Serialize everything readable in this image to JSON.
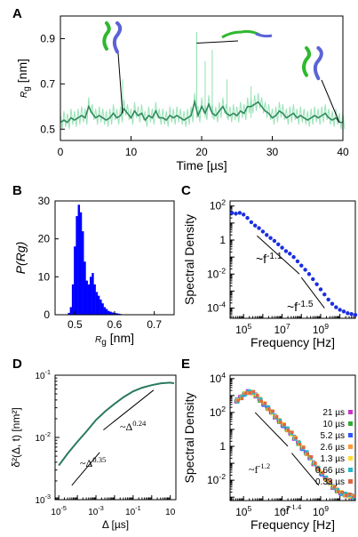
{
  "colors": {
    "rg_trace": "#2f8a5c",
    "rg_noise": "#8fe0b0",
    "histogram": "#0000ff",
    "spectral": "#1a2ee0",
    "msd": "#2a7a5c",
    "guide": "#000000"
  },
  "chart_data": [
    {
      "panel": "A",
      "type": "line",
      "xlabel": "Time [µs]",
      "ylabel_base": "R",
      "ylabel_sub": "g",
      "ylabel_unit": " [nm]",
      "xlim": [
        0,
        40
      ],
      "ylim": [
        0.45,
        1.0
      ],
      "xticks": [
        0,
        10,
        20,
        30,
        40
      ],
      "yticks": [
        0.5,
        0.7,
        0.9
      ],
      "x": [
        0,
        0.5,
        1,
        1.5,
        2,
        2.5,
        3,
        3.5,
        4,
        4.5,
        5,
        5.5,
        6,
        6.5,
        7,
        7.5,
        8,
        8.5,
        9,
        9.5,
        10,
        10.5,
        11,
        11.5,
        12,
        12.5,
        13,
        13.5,
        14,
        14.5,
        15,
        15.5,
        16,
        16.5,
        17,
        17.5,
        18,
        18.5,
        19,
        19.5,
        20,
        20.5,
        21,
        21.5,
        22,
        22.5,
        23,
        23.5,
        24,
        24.5,
        25,
        25.5,
        26,
        26.5,
        27,
        27.5,
        28,
        28.5,
        29,
        29.5,
        30,
        30.5,
        31,
        31.5,
        32,
        32.5,
        33,
        33.5,
        34,
        34.5,
        35,
        35.5,
        36,
        36.5,
        37,
        37.5,
        38,
        38.5,
        39,
        39.5,
        40
      ],
      "y": [
        0.53,
        0.54,
        0.53,
        0.55,
        0.54,
        0.55,
        0.56,
        0.55,
        0.6,
        0.57,
        0.55,
        0.56,
        0.55,
        0.54,
        0.55,
        0.57,
        0.55,
        0.56,
        0.59,
        0.57,
        0.55,
        0.58,
        0.56,
        0.57,
        0.54,
        0.56,
        0.55,
        0.58,
        0.55,
        0.55,
        0.54,
        0.56,
        0.55,
        0.56,
        0.55,
        0.54,
        0.55,
        0.56,
        0.62,
        0.56,
        0.6,
        0.57,
        0.61,
        0.57,
        0.56,
        0.58,
        0.6,
        0.57,
        0.56,
        0.57,
        0.56,
        0.58,
        0.57,
        0.6,
        0.6,
        0.61,
        0.62,
        0.6,
        0.58,
        0.57,
        0.55,
        0.56,
        0.58,
        0.57,
        0.55,
        0.56,
        0.57,
        0.55,
        0.56,
        0.55,
        0.54,
        0.55,
        0.56,
        0.55,
        0.56,
        0.57,
        0.55,
        0.54,
        0.55,
        0.53,
        0.53
      ]
    },
    {
      "panel": "B",
      "type": "bar",
      "xlabel_base": "R",
      "xlabel_sub": "g",
      "xlabel_unit": " [nm]",
      "ylabel": "P(Rg)",
      "xlim": [
        0.45,
        0.75
      ],
      "ylim": [
        0,
        30
      ],
      "xticks": [
        0.5,
        0.6,
        0.7
      ],
      "yticks": [
        0,
        10,
        20,
        30
      ],
      "bin_centers": [
        0.485,
        0.49,
        0.495,
        0.5,
        0.505,
        0.51,
        0.515,
        0.52,
        0.525,
        0.53,
        0.535,
        0.54,
        0.545,
        0.55,
        0.555,
        0.56,
        0.565,
        0.57,
        0.575,
        0.58,
        0.585,
        0.59,
        0.595,
        0.6,
        0.605,
        0.61,
        0.615,
        0.62
      ],
      "values": [
        0.5,
        2,
        8,
        18,
        26,
        29,
        27,
        22,
        14,
        9,
        8,
        10,
        11,
        8,
        6,
        5,
        4,
        3,
        2,
        1.5,
        1,
        0.8,
        0.6,
        0.5,
        0.4,
        0.3,
        0.2,
        0.1
      ]
    },
    {
      "panel": "C",
      "type": "scatter",
      "xlabel": "Frequency [Hz]",
      "ylabel": "Spectral Density",
      "xscale": "log",
      "yscale": "log",
      "xlim_log10": [
        4.3,
        10.8
      ],
      "ylim_log10": [
        -4.6,
        2.3
      ],
      "xticks_log10": [
        5,
        7,
        9
      ],
      "yticks_log10": [
        2,
        0,
        -2,
        -4
      ],
      "ytick_labels": [
        "10^2",
        "1",
        "10^-2",
        "10^-4"
      ],
      "log10_x": [
        4.4,
        4.6,
        4.8,
        5.0,
        5.2,
        5.4,
        5.6,
        5.8,
        6.0,
        6.2,
        6.4,
        6.6,
        6.8,
        7.0,
        7.2,
        7.4,
        7.6,
        7.8,
        8.0,
        8.2,
        8.4,
        8.6,
        8.8,
        9.0,
        9.2,
        9.4,
        9.6,
        9.8,
        10.0,
        10.2,
        10.4,
        10.6,
        10.8
      ],
      "log10_y": [
        1.6,
        1.55,
        1.6,
        1.5,
        1.3,
        1.05,
        0.85,
        0.7,
        0.5,
        0.3,
        0.12,
        -0.05,
        -0.25,
        -0.45,
        -0.65,
        -0.8,
        -1.0,
        -1.25,
        -1.5,
        -1.75,
        -2.0,
        -2.3,
        -2.6,
        -2.9,
        -3.2,
        -3.5,
        -3.75,
        -3.95,
        -4.1,
        -4.2,
        -4.3,
        -4.35,
        -4.4
      ],
      "guides": [
        {
          "label_base": "~f",
          "label_exp": "-1.1",
          "x0": 5.7,
          "y0": 0.25,
          "x1": 7.9,
          "y1": -2.0
        },
        {
          "label_base": "~f",
          "label_exp": "-1.5",
          "x0": 8.0,
          "y0": -2.2,
          "x1": 9.2,
          "y1": -4.0
        }
      ]
    },
    {
      "panel": "D",
      "type": "line",
      "xlabel": "Δ [µs]",
      "ylabel": "δ²(Δ, t) [nm²]",
      "xscale": "log",
      "yscale": "log",
      "xlim_log10": [
        -5.2,
        1.3
      ],
      "ylim_log10": [
        -3,
        -1
      ],
      "xticks_log10": [
        -5,
        -3,
        -1,
        1
      ],
      "xtick_labels": [
        "10^-5",
        "10^-3",
        "10^-1",
        "10"
      ],
      "yticks_log10": [
        -1,
        -2,
        -3
      ],
      "ytick_labels": [
        "10^-1",
        "10^-2",
        "10^-3"
      ],
      "log10_x": [
        -5.0,
        -4.5,
        -4.0,
        -3.5,
        -3.0,
        -2.5,
        -2.0,
        -1.5,
        -1.0,
        -0.5,
        0.0,
        0.5,
        1.0,
        1.2
      ],
      "log10_y": [
        -2.45,
        -2.25,
        -2.07,
        -1.9,
        -1.72,
        -1.58,
        -1.46,
        -1.35,
        -1.26,
        -1.2,
        -1.16,
        -1.13,
        -1.12,
        -1.13
      ],
      "guides": [
        {
          "label_base": "~Δ",
          "label_exp": "0.35",
          "x0": -4.3,
          "y0": -2.77,
          "x1": -2.8,
          "y1": -2.24
        },
        {
          "label_base": "~Δ",
          "label_exp": "0.24",
          "x0": -2.6,
          "y0": -1.88,
          "x1": 0.1,
          "y1": -1.24
        }
      ]
    },
    {
      "panel": "E",
      "type": "scatter",
      "xlabel": "Frequency [Hz]",
      "ylabel": "Spectral Density",
      "xscale": "log",
      "yscale": "log",
      "xlim_log10": [
        4.3,
        10.8
      ],
      "ylim_log10": [
        -3.2,
        4.2
      ],
      "xticks_log10": [
        5,
        7,
        9
      ],
      "yticks_log10": [
        4,
        2,
        0,
        -2
      ],
      "ytick_labels": [
        "10^4",
        "10^2",
        "1",
        "10^-2"
      ],
      "legend_position": "right",
      "series": [
        {
          "name": "21 µs",
          "color": "#cc33cc"
        },
        {
          "name": "10 µs",
          "color": "#33aa33"
        },
        {
          "name": "5.2 µs",
          "color": "#3355ff"
        },
        {
          "name": "2.6 µs",
          "color": "#ff9933"
        },
        {
          "name": "1.3 µs",
          "color": "#ffdd33"
        },
        {
          "name": "0.66 µs",
          "color": "#22bbcc"
        },
        {
          "name": "0.33 µs",
          "color": "#dd6644"
        }
      ],
      "log10_x": [
        4.6,
        4.8,
        5.0,
        5.2,
        5.4,
        5.6,
        5.8,
        6.0,
        6.2,
        6.4,
        6.6,
        6.8,
        7.0,
        7.2,
        7.4,
        7.6,
        7.8,
        8.0,
        8.2,
        8.4,
        8.6,
        8.8,
        9.0,
        9.2,
        9.4,
        9.6,
        9.8,
        10.0,
        10.2,
        10.4,
        10.6
      ],
      "log10_y": [
        2.7,
        2.9,
        3.1,
        3.2,
        3.15,
        3.0,
        2.75,
        2.5,
        2.25,
        2.0,
        1.75,
        1.5,
        1.25,
        1.0,
        0.75,
        0.5,
        0.2,
        -0.1,
        -0.4,
        -0.7,
        -1.0,
        -1.3,
        -1.6,
        -1.9,
        -2.15,
        -2.4,
        -2.6,
        -2.75,
        -2.85,
        -2.9,
        -2.95
      ],
      "guides": [
        {
          "label_base": "~f",
          "label_exp": "-1.2",
          "x0": 5.6,
          "y0": 2.0,
          "x1": 7.3,
          "y1": 0.0
        },
        {
          "label_base": "~f",
          "label_exp": "-1.4",
          "x0": 7.5,
          "y0": -0.4,
          "x1": 8.9,
          "y1": -2.3
        }
      ]
    }
  ]
}
